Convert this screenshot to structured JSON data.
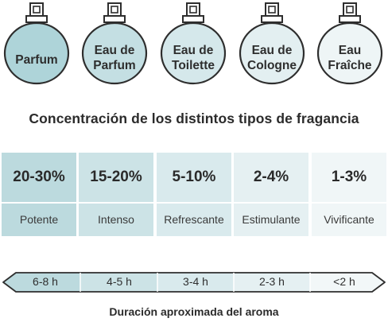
{
  "bottles": [
    {
      "name": "Parfum",
      "color": "#aed4d9"
    },
    {
      "name": "Eau de\nParfum",
      "color": "#c4dfe3"
    },
    {
      "name": "Eau de\nToilette",
      "color": "#d5e8eb"
    },
    {
      "name": "Eau de\nCologne",
      "color": "#e3eff1"
    },
    {
      "name": "Eau\nFraîche",
      "color": "#eef5f6"
    }
  ],
  "heading": "Concentración de los distintos tipos de fragancia",
  "concentrations": [
    {
      "percent": "20-30%",
      "label": "Potente",
      "color": "#bcdade"
    },
    {
      "percent": "15-20%",
      "label": "Intenso",
      "color": "#cce3e6"
    },
    {
      "percent": "5-10%",
      "label": "Refrescante",
      "color": "#d9eaed"
    },
    {
      "percent": "2-4%",
      "label": "Estimulante",
      "color": "#e5f0f2"
    },
    {
      "percent": "1-3%",
      "label": "Vivificante",
      "color": "#f0f6f7"
    }
  ],
  "durations": [
    {
      "label": "6-8 h",
      "color": "#bcdade"
    },
    {
      "label": "4-5 h",
      "color": "#cce3e6"
    },
    {
      "label": "3-4 h",
      "color": "#d9eaed"
    },
    {
      "label": "2-3 h",
      "color": "#e5f0f2"
    },
    {
      "label": "<2 h",
      "color": "#f2f7f8"
    }
  ],
  "caption": "Duración aproximada del aroma",
  "outline_color": "#2e2e2e"
}
